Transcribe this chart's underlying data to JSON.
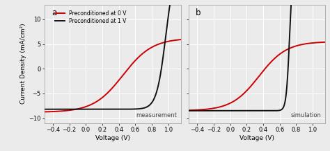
{
  "title_a": "a",
  "title_b": "b",
  "xlabel": "Voltage (V)",
  "ylabel": "Current Density (mA/cm²)",
  "label_0V": "Preconditioned at 0 V",
  "label_1V": "Preconditioned at 1 V",
  "color_0V": "#cc0000",
  "color_1V": "#111111",
  "annotation_a": "measurement",
  "annotation_b": "simulation",
  "xlim": [
    -0.5,
    1.15
  ],
  "ylim": [
    -11,
    13
  ],
  "xticks": [
    -0.4,
    -0.2,
    0.0,
    0.2,
    0.4,
    0.6,
    0.8,
    1.0
  ],
  "yticks": [
    -10,
    -5,
    0,
    5,
    10
  ],
  "linewidth": 1.4,
  "bg_color": "#ebebeb",
  "grid_color": "#ffffff",
  "grid_linewidth": 0.7,
  "panel_a": {
    "red_Jph": -8.8,
    "red_Vmid": 0.45,
    "red_steep": 2.8,
    "red_Jd_sat": 15.0,
    "black_Jph": -8.2,
    "black_Vmid": 0.97,
    "black_steep": 9.0,
    "black_Jd_sat": 30.0
  },
  "panel_b": {
    "red_Jph": -8.5,
    "red_Vmid": 0.35,
    "red_steep": 3.0,
    "red_Jd_sat": 14.0,
    "black_Jph": -8.5,
    "black_Vmid": 0.72,
    "black_steep": 25.0,
    "black_Jd_sat": 30.0
  }
}
